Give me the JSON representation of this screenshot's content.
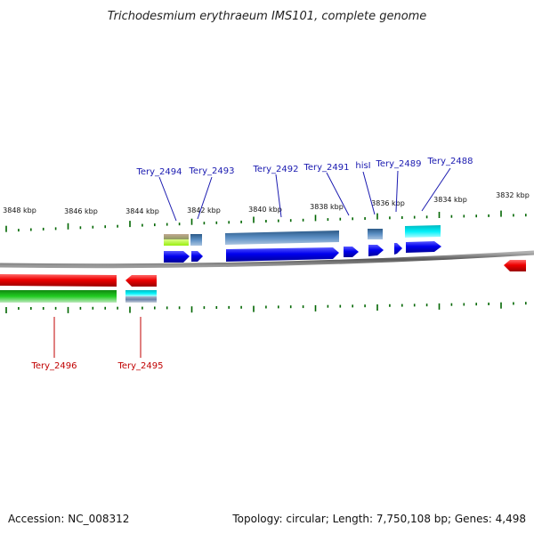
{
  "title": "Trichodesmium erythraeum IMS101, complete genome",
  "footer": {
    "accession": "Accession: NC_008312",
    "summary": "Topology: circular; Length: 7,750,108 bp; Genes: 4,498"
  },
  "ticks": [
    "3848 kbp",
    "3846 kbp",
    "3844 kbp",
    "3842 kbp",
    "3840 kbp",
    "3838 kbp",
    "3836 kbp",
    "3834 kbp",
    "3832 kbp"
  ],
  "genes_forward": [
    "Tery_2494",
    "Tery_2493",
    "Tery_2492",
    "Tery_2491",
    "hisI",
    "Tery_2489",
    "Tery_2488"
  ],
  "genes_reverse": [
    "Tery_2496",
    "Tery_2495"
  ],
  "colors": {
    "backbone": "#808080",
    "forward_cds": "#0000ee",
    "reverse_cds": "#ee0000",
    "steelblue_feature": "#4a7fb5",
    "cyan_feature": "#00e0e8",
    "green_feature": "#22bb22",
    "olive_feature": "#99a050",
    "lime_feature": "#aaff22",
    "tick_mark": "#006600",
    "forward_label": "#1a1ab0",
    "reverse_label": "#c00000"
  }
}
